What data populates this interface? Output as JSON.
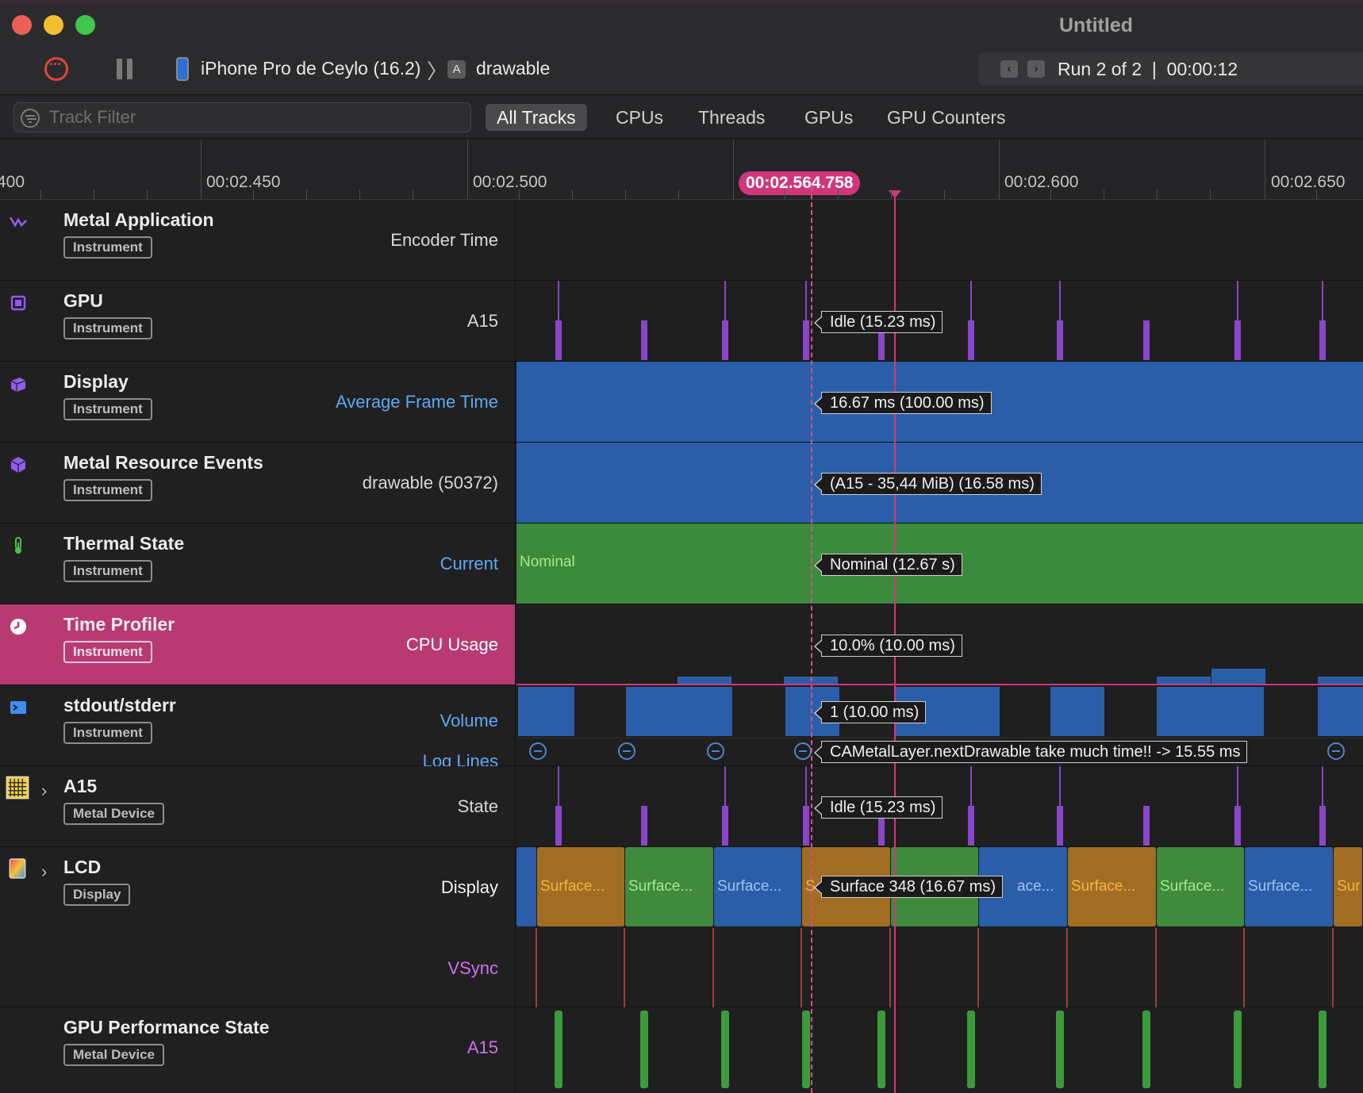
{
  "window": {
    "title": "Untitled"
  },
  "toolbar": {
    "device": "iPhone Pro de Ceylo (16.2)",
    "app": "drawable",
    "run": "Run 2 of 2  |  00:00:12"
  },
  "filter": {
    "placeholder": "Track Filter",
    "scopes": [
      "All Tracks",
      "CPUs",
      "Threads",
      "GPUs",
      "GPU Counters"
    ],
    "active_scope": "All Tracks"
  },
  "ruler": {
    "labels": [
      "400",
      "00:02.450",
      "00:02.500",
      "00:02.600",
      "00:02.650"
    ],
    "playhead": "00:02.564.758"
  },
  "tracks": [
    {
      "name": "Metal Application",
      "badge": "Instrument",
      "detail": "Encoder Time",
      "icon": "metal-app-icon"
    },
    {
      "name": "GPU",
      "badge": "Instrument",
      "detail": "A15",
      "icon": "gpu-chip-icon",
      "tooltip": "Idle (15.23 ms)"
    },
    {
      "name": "Display",
      "badge": "Instrument",
      "detail": "Average Frame Time",
      "icon": "display-icon",
      "tooltip": "16.67 ms (100.00 ms)"
    },
    {
      "name": "Metal Resource Events",
      "badge": "Instrument",
      "detail": "drawable (50372)",
      "icon": "metal-resource-icon",
      "tooltip": "(A15 - 35,44 MiB)  (16.58 ms)"
    },
    {
      "name": "Thermal State",
      "badge": "Instrument",
      "detail": "Current",
      "icon": "thermometer-icon",
      "tooltip": "Nominal (12.67 s)",
      "state_label": "Nominal"
    },
    {
      "name": "Time Profiler",
      "badge": "Instrument",
      "detail": "CPU Usage",
      "icon": "time-profiler-icon",
      "tooltip": "10.0% (10.00 ms)"
    },
    {
      "name": "stdout/stderr",
      "badge": "Instrument",
      "detail": "Volume",
      "detail2": "Log Lines",
      "icon": "terminal-icon",
      "tooltip": "1 (10.00 ms)",
      "tooltip2": "CAMetalLayer.nextDrawable take much time!! -> 15.55 ms"
    },
    {
      "name": "A15",
      "badge": "Metal Device",
      "detail": "State",
      "icon": "gpu-grid-icon",
      "tooltip": "Idle (15.23 ms)"
    },
    {
      "name": "LCD",
      "badge": "Display",
      "detail": "Display",
      "detail2": "VSync",
      "icon": "lcd-icon",
      "tooltip": "Surface 348 (16.67 ms)"
    },
    {
      "name": "GPU Performance State",
      "badge": "Metal Device",
      "detail": "A15"
    }
  ],
  "lcd": {
    "surfaces": [
      "Surface...",
      "Surface...",
      "Surface...",
      "S",
      "",
      "ace...",
      "Surface...",
      "Surface...",
      "Surface...",
      "Sur"
    ],
    "surface_colors": [
      "orange",
      "green",
      "blue",
      "orange",
      "green",
      "blue",
      "orange",
      "green",
      "blue",
      "orange"
    ]
  },
  "colors": {
    "accent": "#d0377a",
    "track_blue": "#2b5ea8",
    "track_green": "#3c8a3c",
    "gpu_purple": "#8a46c8"
  }
}
